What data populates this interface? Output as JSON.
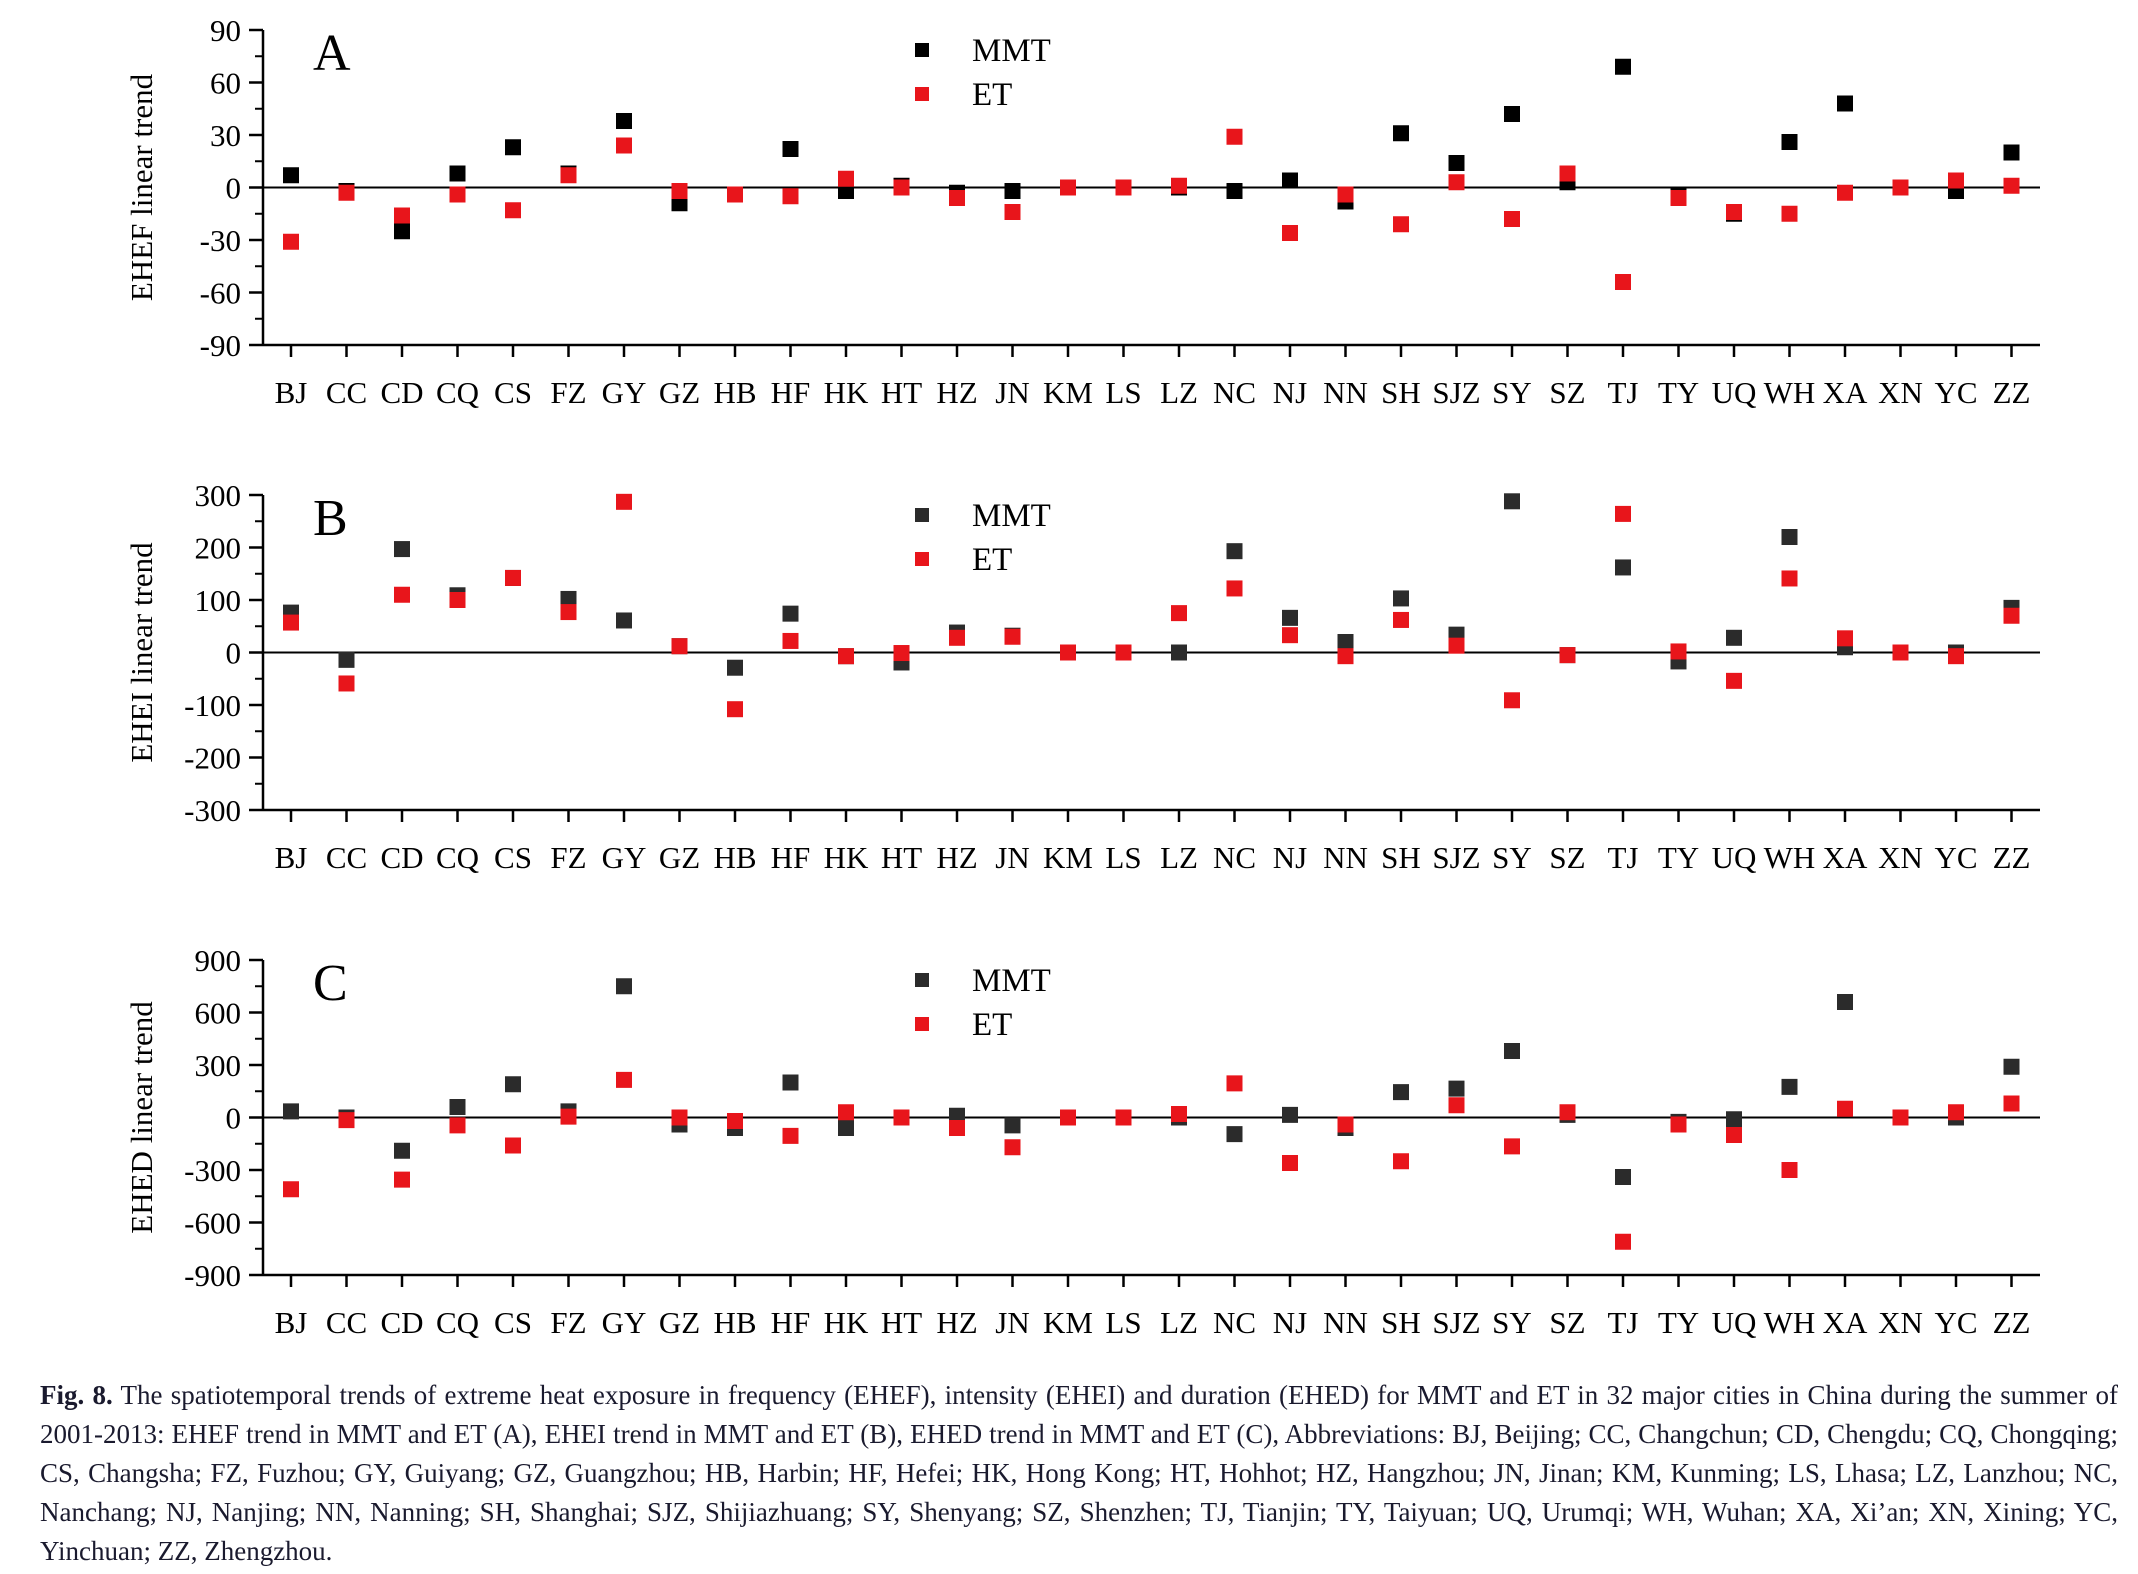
{
  "cities": [
    "BJ",
    "CC",
    "CD",
    "CQ",
    "CS",
    "FZ",
    "GY",
    "GZ",
    "HB",
    "HF",
    "HK",
    "HT",
    "HZ",
    "JN",
    "KM",
    "LS",
    "LZ",
    "NC",
    "NJ",
    "NN",
    "SH",
    "SJZ",
    "SY",
    "SZ",
    "TJ",
    "TY",
    "UQ",
    "WH",
    "XA",
    "XN",
    "YC",
    "ZZ"
  ],
  "colors": {
    "MMT": "#000000",
    "MMT_dark": "#2b2b2b",
    "ET": "#e8151b"
  },
  "chart_data": [
    {
      "type": "scatter",
      "panel_letter": "A",
      "ylabel": "EHEF linear trend",
      "ylim": [
        -90,
        90
      ],
      "yticks": [
        -90,
        -60,
        -30,
        0,
        30,
        60,
        90
      ],
      "legend": [
        "MMT",
        "ET"
      ],
      "legend_placement": "top-center",
      "series": [
        {
          "name": "MMT",
          "values": [
            7,
            -2,
            -25,
            8,
            23,
            8,
            38,
            -9,
            -4,
            22,
            -2,
            1,
            -3,
            -2,
            0,
            0,
            0,
            -2,
            4,
            -8,
            31,
            14,
            42,
            3,
            69,
            -5,
            -15,
            26,
            48,
            0,
            -2,
            20
          ]
        },
        {
          "name": "ET",
          "values": [
            -31,
            -3,
            -16,
            -4,
            -13,
            7,
            24,
            -2,
            -4,
            -5,
            5,
            0,
            -6,
            -14,
            0,
            0,
            1,
            29,
            -26,
            -4,
            -21,
            3,
            -18,
            8,
            -54,
            -6,
            -14,
            -15,
            -3,
            0,
            4,
            1
          ]
        }
      ]
    },
    {
      "type": "scatter",
      "panel_letter": "B",
      "ylabel": "EHEI linear trend",
      "ylim": [
        -300,
        300
      ],
      "yticks": [
        -300,
        -200,
        -100,
        0,
        100,
        200,
        300
      ],
      "legend": [
        "MMT",
        "ET"
      ],
      "legend_placement": "top-center",
      "series": [
        {
          "name": "MMT",
          "values": [
            76,
            -14,
            197,
            109,
            142,
            102,
            61,
            12,
            -29,
            74,
            -7,
            -19,
            38,
            32,
            0,
            0,
            0,
            193,
            66,
            20,
            103,
            34,
            288,
            -5,
            162,
            -17,
            28,
            220,
            10,
            0,
            0,
            85
          ]
        },
        {
          "name": "ET",
          "values": [
            57,
            -59,
            110,
            100,
            142,
            77,
            287,
            12,
            -108,
            22,
            -7,
            -1,
            28,
            30,
            0,
            0,
            75,
            122,
            33,
            -7,
            62,
            13,
            -91,
            -5,
            264,
            2,
            -54,
            141,
            27,
            0,
            -7,
            70
          ]
        }
      ]
    },
    {
      "type": "scatter",
      "panel_letter": "C",
      "ylabel": "EHED linear trend",
      "ylim": [
        -900,
        900
      ],
      "yticks": [
        -900,
        -600,
        -300,
        0,
        300,
        600,
        900
      ],
      "legend": [
        "MMT",
        "ET"
      ],
      "legend_placement": "top-center",
      "series": [
        {
          "name": "MMT",
          "values": [
            35,
            0,
            -190,
            60,
            190,
            35,
            750,
            -40,
            -60,
            200,
            -60,
            0,
            10,
            -45,
            0,
            0,
            0,
            -95,
            15,
            -60,
            145,
            165,
            380,
            15,
            -340,
            -25,
            -10,
            175,
            660,
            0,
            0,
            290
          ]
        },
        {
          "name": "ET",
          "values": [
            -410,
            -15,
            -355,
            -45,
            -160,
            5,
            215,
            0,
            -20,
            -105,
            30,
            0,
            -60,
            -170,
            0,
            0,
            20,
            195,
            -260,
            -40,
            -250,
            70,
            -165,
            30,
            -710,
            -40,
            -100,
            -300,
            50,
            0,
            30,
            80
          ]
        }
      ]
    }
  ],
  "caption": {
    "label": "Fig. 8.",
    "text": "The spatiotemporal trends of extreme heat exposure in frequency (EHEF), intensity (EHEI) and duration (EHED) for MMT and ET in 32 major cities in China during the summer of 2001-2013: EHEF trend in MMT and ET (A), EHEI trend in MMT and ET (B), EHED trend in MMT and ET (C), Abbreviations: BJ, Beijing; CC, Changchun; CD, Chengdu; CQ, Chongqing; CS, Changsha; FZ, Fuzhou; GY, Guiyang; GZ, Guangzhou; HB, Harbin; HF, Hefei; HK, Hong Kong; HT, Hohhot; HZ, Hangzhou; JN, Jinan; KM, Kunming; LS, Lhasa; LZ, Lanzhou; NC, Nanchang; NJ, Nanjing; NN, Nanning; SH, Shanghai; SJZ, Shijiazhuang; SY, Shenyang; SZ, Shenzhen; TJ, Tianjin; TY, Taiyuan; UQ, Urumqi; WH, Wuhan; XA, Xi’an; XN, Xining; YC, Yinchuan; ZZ, Zhengzhou."
  }
}
